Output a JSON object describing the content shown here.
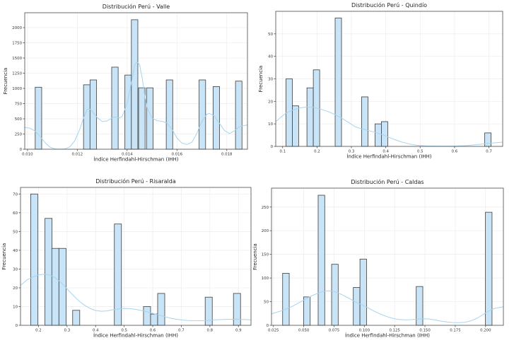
{
  "figure": {
    "background": "#ffffff",
    "bar_fill": "#c8e4f6",
    "bar_edge": "#3d3d3d",
    "kde_color": "#a6d4f0",
    "grid_color": "#ececec",
    "spine_color": "#4a4a4a",
    "tick_text_color": "#333333",
    "title_color": "#1f1f1f"
  },
  "chart_data": [
    {
      "type": "bar",
      "subtype": "histogram_with_kde",
      "title": "Distribución Perú - Valle",
      "xlabel": "Índice Herfindahl-Hirschman (IHH)",
      "ylabel": "Frecuencia",
      "xlim": [
        0.00989,
        0.01883
      ],
      "ylim": [
        0,
        2245
      ],
      "xticks": [
        0.01,
        0.012,
        0.014,
        0.016,
        0.018
      ],
      "xtick_labels": [
        "0.010",
        "0.012",
        "0.014",
        "0.016",
        "0.018"
      ],
      "yticks": [
        0,
        250,
        500,
        750,
        1000,
        1250,
        1500,
        1750,
        2000
      ],
      "grid": true,
      "legend": "none",
      "bar_width": 0.00026,
      "bars": [
        [
          0.01044,
          1020
        ],
        [
          0.01238,
          1060
        ],
        [
          0.01264,
          1140
        ],
        [
          0.01351,
          1350
        ],
        [
          0.01404,
          1220
        ],
        [
          0.0143,
          2130
        ],
        [
          0.01459,
          1010
        ],
        [
          0.01491,
          1010
        ],
        [
          0.0157,
          1140
        ],
        [
          0.01702,
          1140
        ],
        [
          0.01758,
          1030
        ],
        [
          0.01848,
          1120
        ]
      ],
      "kde": [
        [
          0.00989,
          360
        ],
        [
          0.0101,
          345
        ],
        [
          0.0103,
          300
        ],
        [
          0.0105,
          215
        ],
        [
          0.0107,
          110
        ],
        [
          0.0109,
          35
        ],
        [
          0.0111,
          5
        ],
        [
          0.0113,
          0
        ],
        [
          0.0115,
          5
        ],
        [
          0.0117,
          40
        ],
        [
          0.0119,
          140
        ],
        [
          0.0121,
          330
        ],
        [
          0.01225,
          520
        ],
        [
          0.0124,
          655
        ],
        [
          0.0125,
          660
        ],
        [
          0.0126,
          620
        ],
        [
          0.0128,
          520
        ],
        [
          0.013,
          455
        ],
        [
          0.0132,
          465
        ],
        [
          0.0134,
          515
        ],
        [
          0.0135,
          530
        ],
        [
          0.0137,
          515
        ],
        [
          0.0138,
          540
        ],
        [
          0.014,
          750
        ],
        [
          0.0142,
          1150
        ],
        [
          0.0143,
          1380
        ],
        [
          0.0144,
          1440
        ],
        [
          0.0145,
          1390
        ],
        [
          0.0146,
          1180
        ],
        [
          0.0147,
          900
        ],
        [
          0.0148,
          680
        ],
        [
          0.015,
          510
        ],
        [
          0.0152,
          470
        ],
        [
          0.0154,
          460
        ],
        [
          0.0156,
          430
        ],
        [
          0.0158,
          330
        ],
        [
          0.016,
          185
        ],
        [
          0.0162,
          100
        ],
        [
          0.0164,
          78
        ],
        [
          0.0166,
          115
        ],
        [
          0.0168,
          260
        ],
        [
          0.017,
          460
        ],
        [
          0.0172,
          575
        ],
        [
          0.0173,
          590
        ],
        [
          0.0175,
          545
        ],
        [
          0.0177,
          430
        ],
        [
          0.0179,
          310
        ],
        [
          0.0181,
          258
        ],
        [
          0.0183,
          300
        ],
        [
          0.0185,
          370
        ],
        [
          0.01883,
          400
        ]
      ]
    },
    {
      "type": "bar",
      "subtype": "histogram_with_kde",
      "title": "Distribución Perú - Quindío",
      "xlabel": "Índice Herfindahl-Hirschman (IHH)",
      "ylabel": "Frecuencia",
      "xlim": [
        0.08,
        0.74
      ],
      "ylim": [
        0,
        60
      ],
      "xticks": [
        0.1,
        0.2,
        0.3,
        0.4,
        0.5,
        0.6,
        0.7
      ],
      "xtick_labels": [
        "0.1",
        "0.2",
        "0.3",
        "0.4",
        "0.5",
        "0.6",
        "0.7"
      ],
      "yticks": [
        0,
        10,
        20,
        30,
        40,
        50
      ],
      "grid": true,
      "legend": "none",
      "bar_width": 0.0185,
      "bars": [
        [
          0.119,
          30
        ],
        [
          0.1375,
          18
        ],
        [
          0.18,
          26
        ],
        [
          0.1985,
          34
        ],
        [
          0.262,
          57
        ],
        [
          0.339,
          22
        ],
        [
          0.378,
          10
        ],
        [
          0.3965,
          11
        ],
        [
          0.697,
          6
        ]
      ],
      "kde": [
        [
          0.08,
          11
        ],
        [
          0.095,
          13
        ],
        [
          0.11,
          14.8
        ],
        [
          0.13,
          16.2
        ],
        [
          0.15,
          17.1
        ],
        [
          0.17,
          17.5
        ],
        [
          0.19,
          17.3
        ],
        [
          0.21,
          16.6
        ],
        [
          0.23,
          15.6
        ],
        [
          0.25,
          14.3
        ],
        [
          0.27,
          12.7
        ],
        [
          0.29,
          10.8
        ],
        [
          0.31,
          8.8
        ],
        [
          0.33,
          7.8
        ],
        [
          0.35,
          7.0
        ],
        [
          0.37,
          6.2
        ],
        [
          0.39,
          5.2
        ],
        [
          0.41,
          4.0
        ],
        [
          0.43,
          2.8
        ],
        [
          0.45,
          1.8
        ],
        [
          0.47,
          1.0
        ],
        [
          0.49,
          0.5
        ],
        [
          0.52,
          0.2
        ],
        [
          0.56,
          0.1
        ],
        [
          0.6,
          0.15
        ],
        [
          0.63,
          0.3
        ],
        [
          0.66,
          0.7
        ],
        [
          0.69,
          1.2
        ],
        [
          0.71,
          1.5
        ],
        [
          0.74,
          1.9
        ]
      ]
    },
    {
      "type": "bar",
      "subtype": "histogram_with_kde",
      "title": "Distribución Perú - Risaralda",
      "xlabel": "Índice Herfindahl-Hirschman (IHH)",
      "ylabel": "Frecuencia",
      "xlim": [
        0.137,
        0.944
      ],
      "ylim": [
        0,
        73.5
      ],
      "xticks": [
        0.2,
        0.3,
        0.4,
        0.5,
        0.6,
        0.7,
        0.8,
        0.9
      ],
      "xtick_labels": [
        "0.2",
        "0.3",
        "0.4",
        "0.5",
        "0.6",
        "0.7",
        "0.8",
        "0.9"
      ],
      "yticks": [
        0,
        10,
        20,
        30,
        40,
        50,
        60,
        70
      ],
      "grid": true,
      "legend": "none",
      "bar_width": 0.0248,
      "bars": [
        [
          0.185,
          70
        ],
        [
          0.235,
          57
        ],
        [
          0.259,
          41
        ],
        [
          0.284,
          41
        ],
        [
          0.332,
          8
        ],
        [
          0.478,
          54
        ],
        [
          0.58,
          10
        ],
        [
          0.6048,
          6
        ],
        [
          0.6296,
          17
        ],
        [
          0.796,
          15
        ],
        [
          0.895,
          17
        ]
      ],
      "kde": [
        [
          0.137,
          21.3
        ],
        [
          0.16,
          24.2
        ],
        [
          0.18,
          25.8
        ],
        [
          0.2,
          26.8
        ],
        [
          0.22,
          27.3
        ],
        [
          0.24,
          26.8
        ],
        [
          0.26,
          25.2
        ],
        [
          0.28,
          22.6
        ],
        [
          0.3,
          19.4
        ],
        [
          0.32,
          16.2
        ],
        [
          0.34,
          13.2
        ],
        [
          0.36,
          10.8
        ],
        [
          0.38,
          9.0
        ],
        [
          0.4,
          7.9
        ],
        [
          0.42,
          7.5
        ],
        [
          0.44,
          7.7
        ],
        [
          0.46,
          8.3
        ],
        [
          0.48,
          8.8
        ],
        [
          0.5,
          9.0
        ],
        [
          0.52,
          8.9
        ],
        [
          0.54,
          8.5
        ],
        [
          0.56,
          7.9
        ],
        [
          0.58,
          7.2
        ],
        [
          0.6,
          6.4
        ],
        [
          0.62,
          5.5
        ],
        [
          0.64,
          4.7
        ],
        [
          0.66,
          3.9
        ],
        [
          0.68,
          3.3
        ],
        [
          0.7,
          2.9
        ],
        [
          0.72,
          2.6
        ],
        [
          0.74,
          2.45
        ],
        [
          0.76,
          2.4
        ],
        [
          0.78,
          2.5
        ],
        [
          0.8,
          2.7
        ],
        [
          0.83,
          3.0
        ],
        [
          0.86,
          3.2
        ],
        [
          0.89,
          3.25
        ],
        [
          0.92,
          3.1
        ],
        [
          0.944,
          2.9
        ]
      ]
    },
    {
      "type": "bar",
      "subtype": "histogram_with_kde",
      "title": "Distribución Perú - Caldas",
      "xlabel": "Índice Herfindahl-Hirschman (IHH)",
      "ylabel": "Frecuencia",
      "xlim": [
        0.0234,
        0.2147
      ],
      "ylim": [
        0,
        290
      ],
      "xticks": [
        0.025,
        0.05,
        0.075,
        0.1,
        0.125,
        0.15,
        0.175,
        0.2
      ],
      "xtick_labels": [
        "0.025",
        "0.050",
        "0.075",
        "0.100",
        "0.125",
        "0.150",
        "0.175",
        "0.200"
      ],
      "yticks": [
        0,
        50,
        100,
        150,
        200,
        250
      ],
      "grid": true,
      "legend": "none",
      "bar_width": 0.00544,
      "bars": [
        [
          0.0353,
          110
        ],
        [
          0.0526,
          60
        ],
        [
          0.0646,
          275
        ],
        [
          0.0757,
          129
        ],
        [
          0.0936,
          80
        ],
        [
          0.0991,
          140
        ],
        [
          0.1455,
          82
        ],
        [
          0.2026,
          239
        ]
      ],
      "kde": [
        [
          0.0234,
          24
        ],
        [
          0.027,
          27
        ],
        [
          0.032,
          31
        ],
        [
          0.037,
          36
        ],
        [
          0.042,
          42
        ],
        [
          0.047,
          49
        ],
        [
          0.052,
          56
        ],
        [
          0.057,
          63
        ],
        [
          0.062,
          68
        ],
        [
          0.066,
          71.5
        ],
        [
          0.07,
          73
        ],
        [
          0.074,
          72
        ],
        [
          0.078,
          69
        ],
        [
          0.083,
          63
        ],
        [
          0.088,
          56
        ],
        [
          0.093,
          49
        ],
        [
          0.098,
          43
        ],
        [
          0.103,
          37
        ],
        [
          0.108,
          30
        ],
        [
          0.113,
          24
        ],
        [
          0.118,
          19
        ],
        [
          0.123,
          15
        ],
        [
          0.128,
          12.5
        ],
        [
          0.133,
          11.5
        ],
        [
          0.138,
          11.8
        ],
        [
          0.143,
          13
        ],
        [
          0.148,
          13.8
        ],
        [
          0.153,
          13.5
        ],
        [
          0.158,
          11.5
        ],
        [
          0.163,
          9
        ],
        [
          0.168,
          7
        ],
        [
          0.173,
          5.8
        ],
        [
          0.178,
          5.5
        ],
        [
          0.183,
          6.5
        ],
        [
          0.188,
          9.5
        ],
        [
          0.193,
          15
        ],
        [
          0.198,
          23
        ],
        [
          0.203,
          31
        ],
        [
          0.208,
          36
        ],
        [
          0.2147,
          39
        ]
      ]
    }
  ]
}
